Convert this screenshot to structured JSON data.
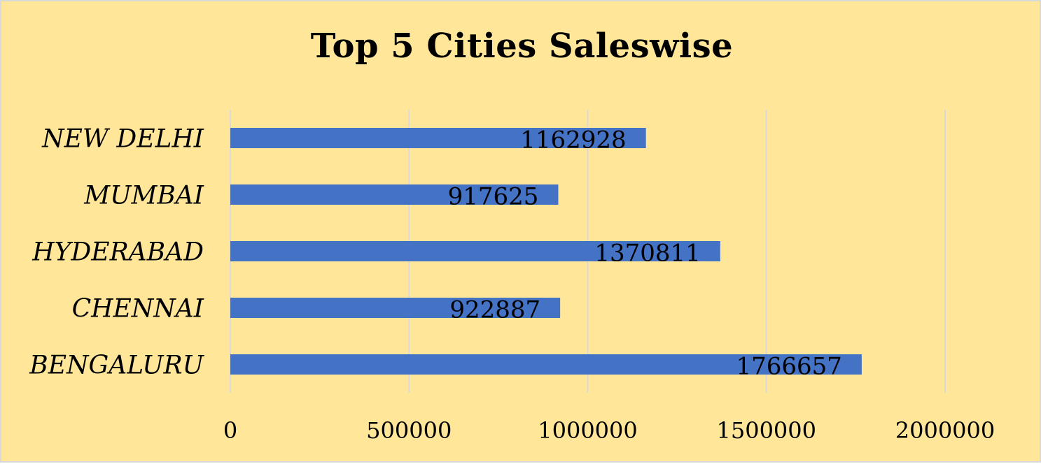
{
  "chart_data": {
    "type": "bar",
    "orientation": "horizontal",
    "title": "Top 5 Cities Saleswise",
    "categories": [
      "NEW DELHI",
      "MUMBAI",
      "HYDERABAD",
      "CHENNAI",
      "BENGALURU"
    ],
    "values": [
      1162928,
      917625,
      1370811,
      922887,
      1766657
    ],
    "data_labels": [
      "1162928",
      "917625",
      "1370811",
      "922887",
      "1766657"
    ],
    "xlim": [
      0,
      2000000
    ],
    "x_ticks": [
      0,
      500000,
      1000000,
      1500000,
      2000000
    ],
    "x_tick_labels": [
      "0",
      "500000",
      "1000000",
      "1500000",
      "2000000"
    ],
    "xlabel": "",
    "ylabel": "",
    "grid": "vertical",
    "legend": "none",
    "colors": {
      "background": "#ffe699",
      "bar": "#4472c4",
      "gridline": "#d9d9d9",
      "border": "#d9d9d9",
      "text": "#000000"
    }
  }
}
